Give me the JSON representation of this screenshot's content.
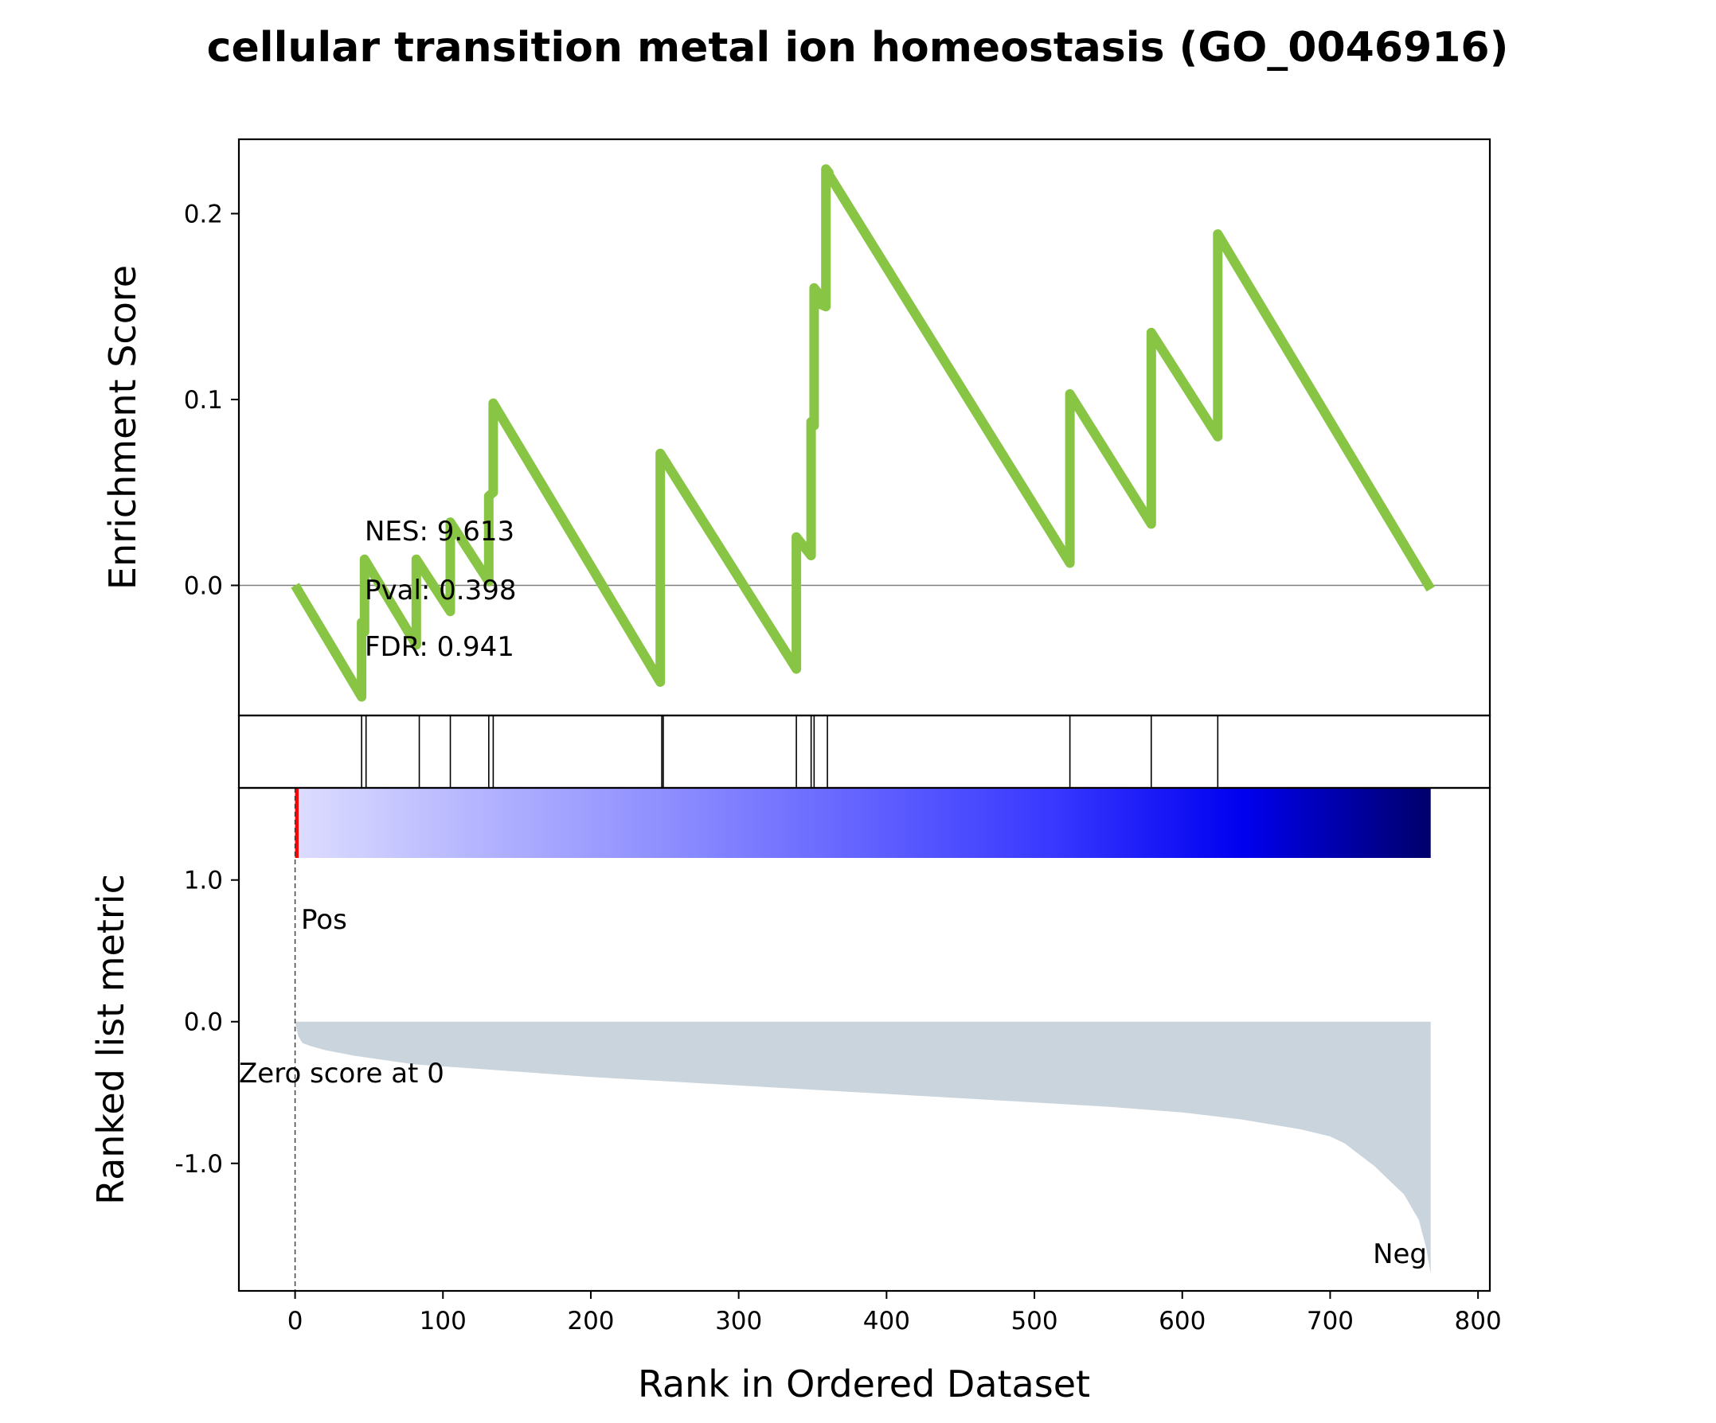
{
  "chart_data": {
    "type": "line",
    "title": "cellular transition metal ion homeostasis (GO_0046916)",
    "xlabel": "Rank in Ordered Dataset",
    "xlim": [
      -38,
      808
    ],
    "x_ticks": [
      "0",
      "100",
      "200",
      "300",
      "400",
      "500",
      "600",
      "700",
      "800"
    ],
    "x_tick_values": [
      0,
      100,
      200,
      300,
      400,
      500,
      600,
      700,
      800
    ],
    "colors": {
      "es_line": "#88C544",
      "metric_fill": "#C9D4DD",
      "pos_label": "#FF0000",
      "neg_label": "#0000FF",
      "zero_line": "#808080"
    },
    "enrichment": {
      "ylabel": "Enrichment Score",
      "ylim": [
        -0.07,
        0.24
      ],
      "y_ticks": [
        "0.0",
        "0.1",
        "0.2"
      ],
      "y_tick_values": [
        0,
        0.1,
        0.2
      ],
      "x": [
        0,
        45,
        45,
        47,
        47,
        82,
        82,
        105,
        105,
        131,
        131,
        134,
        134,
        247,
        247,
        339,
        339,
        349,
        349,
        351,
        351,
        353,
        353,
        359,
        359,
        361,
        361,
        524,
        524,
        579,
        579,
        624,
        624,
        768
      ],
      "y": [
        0.0,
        -0.06,
        -0.02,
        -0.025,
        0.014,
        -0.032,
        0.014,
        -0.014,
        0.034,
        0.002,
        0.048,
        0.05,
        0.098,
        -0.052,
        0.071,
        -0.045,
        0.026,
        0.016,
        0.088,
        0.086,
        0.16,
        0.158,
        0.152,
        0.15,
        0.224,
        0.222,
        0.221,
        0.012,
        0.103,
        0.033,
        0.136,
        0.08,
        0.189,
        -0.002
      ],
      "stats": {
        "nes": "NES: 9.613",
        "pval": "Pval: 0.398",
        "fdr": "FDR: 0.941"
      }
    },
    "hits": [
      45,
      48,
      84,
      105,
      131,
      134,
      248,
      249,
      339,
      349,
      351,
      360,
      524,
      579,
      624
    ],
    "ranked_metric": {
      "ylabel": "Ranked list metric",
      "ylim": [
        -1.9,
        1.65
      ],
      "y_ticks": [
        "1.0",
        "0.0",
        "-1.0"
      ],
      "y_tick_values": [
        1,
        0,
        -1
      ],
      "x": [
        0,
        2,
        5,
        10,
        20,
        40,
        80,
        120,
        160,
        200,
        250,
        300,
        350,
        400,
        450,
        500,
        550,
        600,
        640,
        680,
        700,
        710,
        720,
        730,
        740,
        750,
        760,
        765,
        768
      ],
      "y": [
        0.0,
        -0.1,
        -0.15,
        -0.17,
        -0.2,
        -0.24,
        -0.3,
        -0.33,
        -0.36,
        -0.39,
        -0.42,
        -0.45,
        -0.48,
        -0.51,
        -0.54,
        -0.57,
        -0.6,
        -0.64,
        -0.69,
        -0.76,
        -0.81,
        -0.86,
        -0.94,
        -1.02,
        -1.12,
        -1.22,
        -1.4,
        -1.6,
        -1.78
      ],
      "pos_label": "Pos",
      "neg_label": "Neg",
      "zero_score_label": "Zero score at 0",
      "colorbar_stops": [
        "#FF0000",
        "#DCDCFF",
        "#B2B2FF",
        "#8C8CFF",
        "#6262FF",
        "#3838FF",
        "#0000F0",
        "#00006A"
      ]
    }
  }
}
